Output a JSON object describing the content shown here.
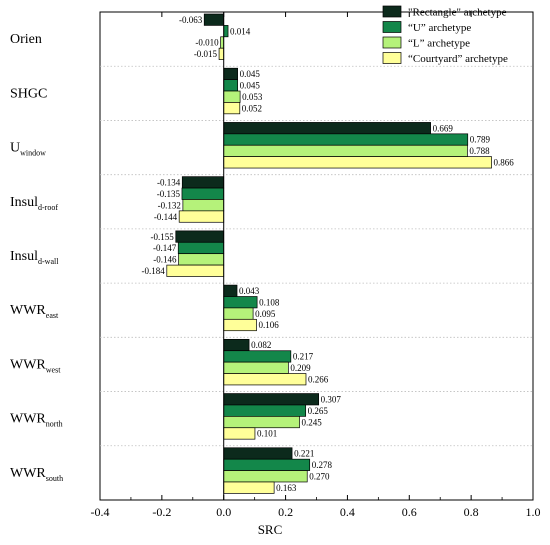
{
  "chart_data": {
    "type": "bar",
    "orientation": "horizontal",
    "xlabel": "SRC",
    "xlim": [
      -0.4,
      1.0
    ],
    "xticks": [
      "-0.4",
      "-0.2",
      "0.0",
      "0.2",
      "0.4",
      "0.6",
      "0.8",
      "1.0"
    ],
    "legend_position": "top-right",
    "grid": "dotted horizontal separators between categories",
    "categories": [
      {
        "main": "Orien",
        "sub": ""
      },
      {
        "main": "SHGC",
        "sub": ""
      },
      {
        "main": "U",
        "sub": "window"
      },
      {
        "main": "Insul",
        "sub": "d-roof"
      },
      {
        "main": "Insul",
        "sub": "d-wall"
      },
      {
        "main": "WWR",
        "sub": "east"
      },
      {
        "main": "WWR",
        "sub": "west"
      },
      {
        "main": "WWR",
        "sub": "north"
      },
      {
        "main": "WWR",
        "sub": "south"
      }
    ],
    "series": [
      {
        "name": "\"Rectangle\" archetype",
        "color": "#0c2a1c",
        "values": [
          -0.063,
          0.045,
          0.669,
          -0.134,
          -0.155,
          0.043,
          0.082,
          0.307,
          0.221
        ],
        "labels": [
          "-0.063",
          "0.045",
          "0.669",
          "-0.134",
          "-0.155",
          "0.043",
          "0.082",
          "0.307",
          "0.221"
        ]
      },
      {
        "name": "“U” archetype",
        "color": "#13874a",
        "values": [
          0.014,
          0.045,
          0.789,
          -0.135,
          -0.147,
          0.108,
          0.217,
          0.265,
          0.278
        ],
        "labels": [
          "0.014",
          "0.045",
          "0.789",
          "-0.135",
          "-0.147",
          "0.108",
          "0.217",
          "0.265",
          "0.278"
        ]
      },
      {
        "name": "“L” archetype",
        "color": "#b5f27a",
        "values": [
          -0.01,
          0.053,
          0.788,
          -0.132,
          -0.146,
          0.095,
          0.209,
          0.245,
          0.27
        ],
        "labels": [
          "-0.010",
          "0.053",
          "0.788",
          "-0.132",
          "-0.146",
          "0.095",
          "0.209",
          "0.245",
          "0.270"
        ]
      },
      {
        "name": "“Courtyard” archetype",
        "color": "#ffff99",
        "values": [
          -0.015,
          0.052,
          0.866,
          -0.144,
          -0.184,
          0.106,
          0.266,
          0.101,
          0.163
        ],
        "labels": [
          "-0.015",
          "0.052",
          "0.866",
          "-0.144",
          "-0.184",
          "0.106",
          "0.266",
          "0.101",
          "0.163"
        ]
      }
    ]
  }
}
